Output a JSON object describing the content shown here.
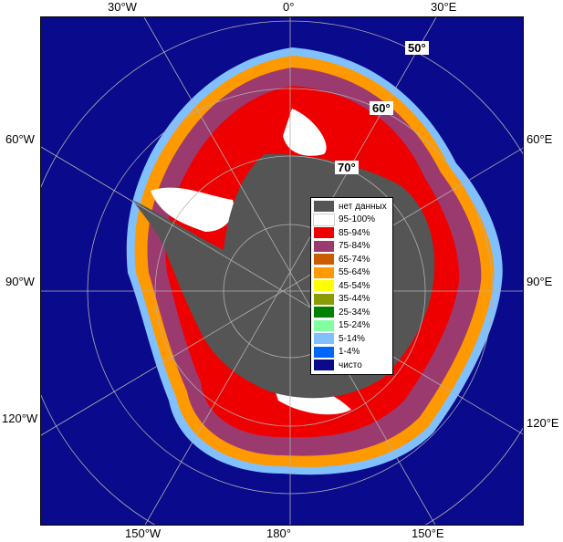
{
  "map": {
    "edge_labels": {
      "top": [
        "30°W",
        "0°",
        "30°E"
      ],
      "left": [
        "60°W",
        "90°W",
        "120°W"
      ],
      "right": [
        "60°E",
        "90°E",
        "120°E"
      ],
      "bottom": [
        "150°W",
        "180°",
        "150°E"
      ]
    },
    "latitude_labels": [
      "50°",
      "60°",
      "70°"
    ],
    "colors": {
      "no_data": "#555555",
      "open_water": "#0a0a8c",
      "background": "#ffffff"
    }
  },
  "legend": {
    "items": [
      {
        "label": "нет данных",
        "color": "#555555"
      },
      {
        "label": "95-100%",
        "color": "#ffffff"
      },
      {
        "label": "85-94%",
        "color": "#ee0000"
      },
      {
        "label": "75-84%",
        "color": "#9b3a6e"
      },
      {
        "label": "65-74%",
        "color": "#cc5c00"
      },
      {
        "label": "55-64%",
        "color": "#ff9900"
      },
      {
        "label": "45-54%",
        "color": "#ffff00"
      },
      {
        "label": "35-44%",
        "color": "#8a9a00"
      },
      {
        "label": "25-34%",
        "color": "#008000"
      },
      {
        "label": "15-24%",
        "color": "#80ffa0"
      },
      {
        "label": "5-14%",
        "color": "#80c0ff"
      },
      {
        "label": "1-4%",
        "color": "#0066ff"
      },
      {
        "label": "чисто",
        "color": "#0a0a8c"
      }
    ]
  }
}
